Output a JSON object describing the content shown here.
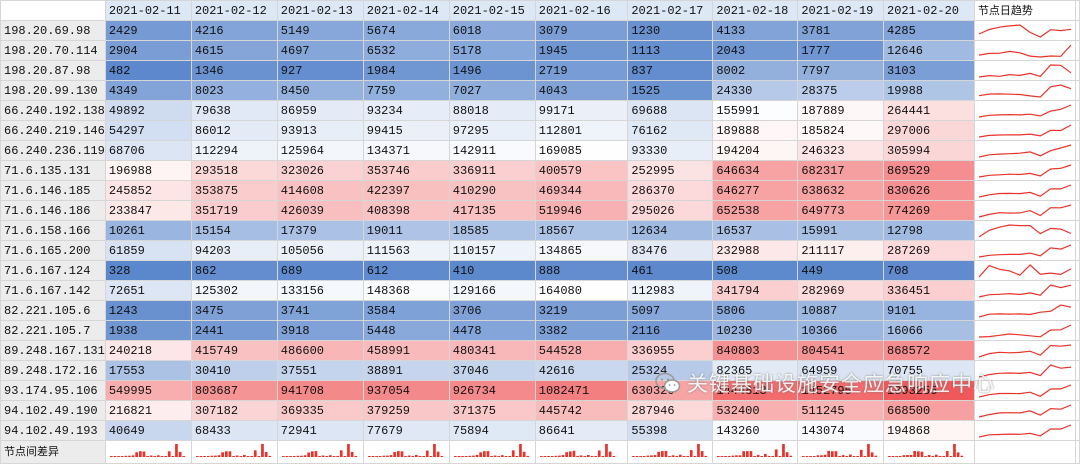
{
  "dates": [
    "2021-02-11",
    "2021-02-12",
    "2021-02-13",
    "2021-02-14",
    "2021-02-15",
    "2021-02-16",
    "2021-02-17",
    "2021-02-18",
    "2021-02-19",
    "2021-02-20"
  ],
  "trend_header": "节点日趋势",
  "diff_label": "节点间差异",
  "rows": [
    {
      "ip": "198.20.69.98",
      "values": [
        2429,
        4216,
        5149,
        5674,
        6018,
        3079,
        1230,
        4133,
        3781,
        4285
      ]
    },
    {
      "ip": "198.20.70.114",
      "values": [
        2904,
        4615,
        4697,
        6532,
        5178,
        1945,
        1113,
        2043,
        1777,
        12646
      ]
    },
    {
      "ip": "198.20.87.98",
      "values": [
        482,
        1346,
        927,
        1984,
        1496,
        2719,
        837,
        8002,
        7797,
        3103
      ]
    },
    {
      "ip": "198.20.99.130",
      "values": [
        4349,
        8023,
        8450,
        7759,
        7027,
        4043,
        1525,
        24330,
        28375,
        19988
      ]
    },
    {
      "ip": "66.240.192.138",
      "values": [
        49892,
        79638,
        86959,
        93234,
        88018,
        99171,
        69688,
        155991,
        187889,
        264441
      ]
    },
    {
      "ip": "66.240.219.146",
      "values": [
        54297,
        86012,
        93913,
        99415,
        97295,
        112801,
        76162,
        189888,
        185824,
        297006
      ]
    },
    {
      "ip": "66.240.236.119",
      "values": [
        68706,
        112294,
        125964,
        134371,
        142911,
        169085,
        93330,
        194204,
        246323,
        305994
      ]
    },
    {
      "ip": "71.6.135.131",
      "values": [
        196988,
        293518,
        323026,
        353746,
        336911,
        400579,
        252995,
        646634,
        682317,
        869529
      ]
    },
    {
      "ip": "71.6.146.185",
      "values": [
        245852,
        353875,
        414608,
        422397,
        410290,
        469344,
        286370,
        646277,
        638632,
        830626
      ]
    },
    {
      "ip": "71.6.146.186",
      "values": [
        233847,
        351719,
        426039,
        408398,
        417135,
        519946,
        295026,
        652538,
        649773,
        774269
      ]
    },
    {
      "ip": "71.6.158.166",
      "values": [
        10261,
        15154,
        17379,
        19011,
        18585,
        18567,
        12634,
        16537,
        15991,
        12798
      ]
    },
    {
      "ip": "71.6.165.200",
      "values": [
        61859,
        94203,
        105056,
        111563,
        110157,
        134865,
        83476,
        232988,
        211117,
        287269
      ]
    },
    {
      "ip": "71.6.167.124",
      "values": [
        328,
        862,
        689,
        612,
        410,
        888,
        461,
        508,
        449,
        708
      ]
    },
    {
      "ip": "71.6.167.142",
      "values": [
        72651,
        125302,
        133156,
        148368,
        129166,
        164080,
        112983,
        341794,
        282969,
        336451
      ]
    },
    {
      "ip": "82.221.105.6",
      "values": [
        1243,
        3475,
        3741,
        3584,
        3706,
        3219,
        5097,
        5806,
        10887,
        9101
      ]
    },
    {
      "ip": "82.221.105.7",
      "values": [
        1938,
        2441,
        3918,
        5448,
        4478,
        3382,
        2116,
        10230,
        10366,
        16066
      ]
    },
    {
      "ip": "89.248.167.131",
      "values": [
        240218,
        415749,
        486600,
        458991,
        480341,
        544528,
        336955,
        840803,
        804541,
        868572
      ]
    },
    {
      "ip": "89.248.172.16",
      "values": [
        17553,
        30410,
        37551,
        38891,
        37046,
        42616,
        25324,
        82365,
        64959,
        70755
      ]
    },
    {
      "ip": "93.174.95.106",
      "values": [
        549995,
        803687,
        941708,
        937054,
        926734,
        1082471,
        630320,
        1444813,
        1452795,
        1893255
      ]
    },
    {
      "ip": "94.102.49.190",
      "values": [
        216821,
        307182,
        369335,
        379259,
        371375,
        445742,
        287946,
        532400,
        511245,
        668500
      ]
    },
    {
      "ip": "94.102.49.193",
      "values": [
        40649,
        68433,
        72941,
        77679,
        75894,
        86641,
        55398,
        143260,
        143074,
        194868
      ]
    }
  ],
  "watermark": "关键基础设施安全应急响应中心",
  "colors": {
    "low": "#5b87cc",
    "mid": "#ffffff",
    "high": "#f0595b",
    "date_header": "#dde8f6",
    "ip_column": "#ececec",
    "sparkline": "#e8322a"
  },
  "icons": [
    "wechat-icon"
  ]
}
